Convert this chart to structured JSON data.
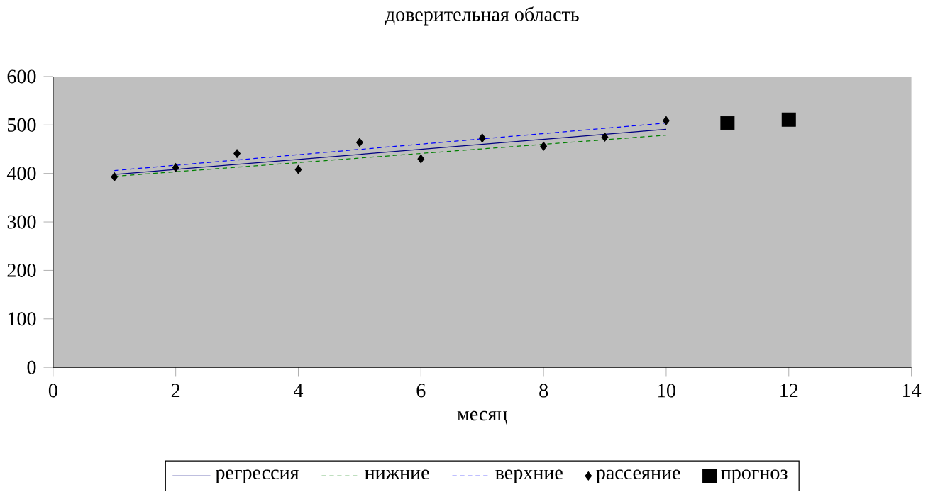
{
  "chart_data": {
    "type": "line",
    "title": "доверительная область",
    "xlabel": "месяц",
    "xlim": [
      0,
      14
    ],
    "xticks": [
      0,
      2,
      4,
      6,
      8,
      10,
      12,
      14
    ],
    "ylim": [
      0,
      600
    ],
    "yticks": [
      0,
      100,
      200,
      300,
      400,
      500,
      600
    ],
    "grid": false,
    "legend": "bottom",
    "series": [
      {
        "name": "регрессия",
        "color": "#000080",
        "line_style": "solid",
        "marker": "none",
        "x": [
          1,
          10
        ],
        "values": [
          398,
          491
        ]
      },
      {
        "name": "нижние",
        "color": "#008000",
        "line_style": "dashed",
        "marker": "none",
        "x": [
          1,
          10
        ],
        "values": [
          394,
          479
        ]
      },
      {
        "name": "верхние",
        "color": "#0000ff",
        "line_style": "dashed",
        "marker": "none",
        "x": [
          1,
          10
        ],
        "values": [
          406,
          504
        ]
      },
      {
        "name": "рассеяние",
        "type": "scatter",
        "color": "#000000",
        "marker": "diamond",
        "x": [
          1,
          2,
          3,
          4,
          5,
          6,
          7,
          8,
          9,
          10
        ],
        "values": [
          393,
          412,
          441,
          408,
          464,
          430,
          473,
          456,
          475,
          509
        ]
      },
      {
        "name": "прогноз",
        "type": "scatter",
        "color": "#000000",
        "marker": "square",
        "x": [
          11,
          12
        ],
        "values": [
          504,
          511
        ]
      }
    ]
  }
}
